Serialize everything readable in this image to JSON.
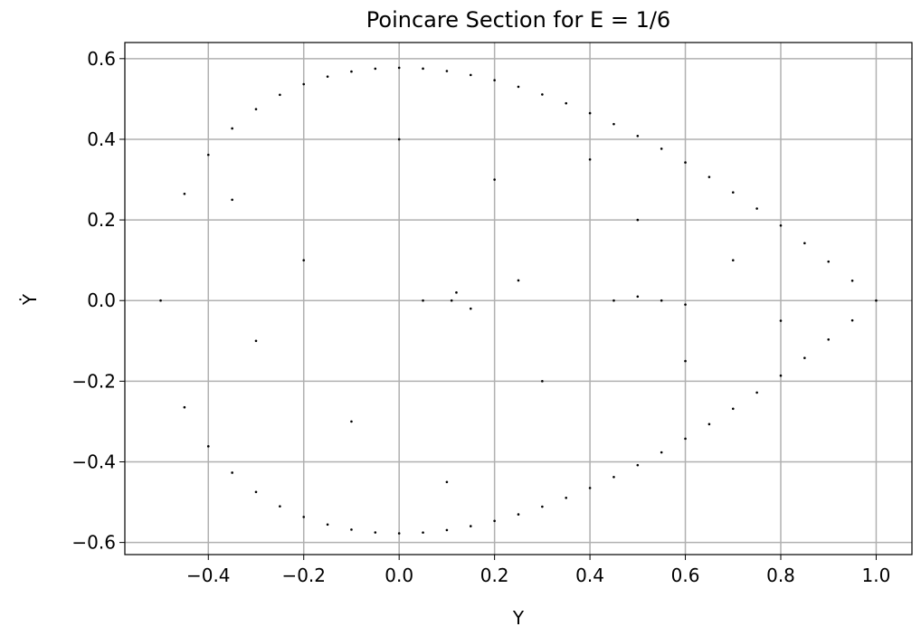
{
  "chart_data": {
    "type": "scatter",
    "title": "Poincare Section for E = 1/6",
    "x_label": "Y",
    "y_label": "Ẏ",
    "color": "#000000",
    "grid": true,
    "xlim": [
      -0.575,
      1.075
    ],
    "ylim": [
      -0.63,
      0.64
    ],
    "xticks": [
      {
        "value": -0.4,
        "label": "−0.4"
      },
      {
        "value": -0.2,
        "label": "−0.2"
      },
      {
        "value": 0,
        "label": "0.0"
      },
      0.2,
      0.4,
      0.6,
      0.8,
      {
        "value": 1,
        "label": "1.0"
      }
    ],
    "yticks": [
      {
        "value": -0.6,
        "label": "−0.6"
      },
      {
        "value": -0.4,
        "label": "−0.4"
      },
      {
        "value": -0.2,
        "label": "−0.2"
      },
      {
        "value": 0,
        "label": "0.0"
      },
      0.2,
      0.4,
      0.6
    ],
    "x": [
      -0.5,
      -0.45,
      -0.4,
      -0.35,
      -0.3,
      -0.25,
      -0.2,
      -0.15,
      -0.1,
      -0.05,
      0,
      0.05,
      0.1,
      0.15,
      0.2,
      0.25,
      0.3,
      0.35,
      0.4,
      0.45,
      0.5,
      0.55,
      0.6,
      0.65,
      0.7,
      0.75,
      0.8,
      0.85,
      0.9,
      0.95,
      1.0,
      -0.45,
      -0.4,
      -0.35,
      -0.3,
      -0.25,
      -0.2,
      -0.15,
      -0.1,
      -0.05,
      0,
      0.05,
      0.1,
      0.15,
      0.2,
      0.25,
      0.3,
      0.35,
      0.4,
      0.45,
      0.5,
      0.55,
      0.6,
      0.65,
      0.7,
      0.75,
      0.8,
      0.85,
      0.9,
      0.95,
      0.2,
      0.3,
      -0.2,
      -0.1,
      0.5,
      0.6,
      0.7,
      0.0,
      0.1,
      -0.3,
      -0.35,
      0.4,
      0.8,
      0.25,
      0.15,
      0.12,
      0.5,
      0.6,
      0.45,
      0.05,
      0.11,
      0.55
    ],
    "y": [
      0,
      0.2647,
      0.3615,
      0.4269,
      0.4747,
      0.5103,
      0.5367,
      0.5555,
      0.568,
      0.5751,
      0.5774,
      0.5753,
      0.5692,
      0.5595,
      0.5465,
      0.5303,
      0.5112,
      0.4893,
      0.4648,
      0.4377,
      0.4082,
      0.3765,
      0.3425,
      0.3065,
      0.2683,
      0.2282,
      0.1862,
      0.1423,
      0.0966,
      0.0492,
      0,
      -0.2647,
      -0.3615,
      -0.4269,
      -0.4747,
      -0.5103,
      -0.5367,
      -0.5555,
      -0.568,
      -0.5751,
      -0.5774,
      -0.5753,
      -0.5692,
      -0.5595,
      -0.5465,
      -0.5303,
      -0.5112,
      -0.4893,
      -0.4648,
      -0.4377,
      -0.4082,
      -0.3765,
      -0.3425,
      -0.3065,
      -0.2683,
      -0.2282,
      -0.1862,
      -0.1423,
      -0.0966,
      -0.0492,
      0.3,
      -0.2,
      0.1,
      -0.3,
      0.2,
      -0.15,
      0.1,
      0.4,
      -0.45,
      -0.1,
      0.25,
      0.35,
      -0.05,
      0.05,
      -0.02,
      0.02,
      0.01,
      -0.01,
      0,
      0,
      0,
      0
    ]
  }
}
